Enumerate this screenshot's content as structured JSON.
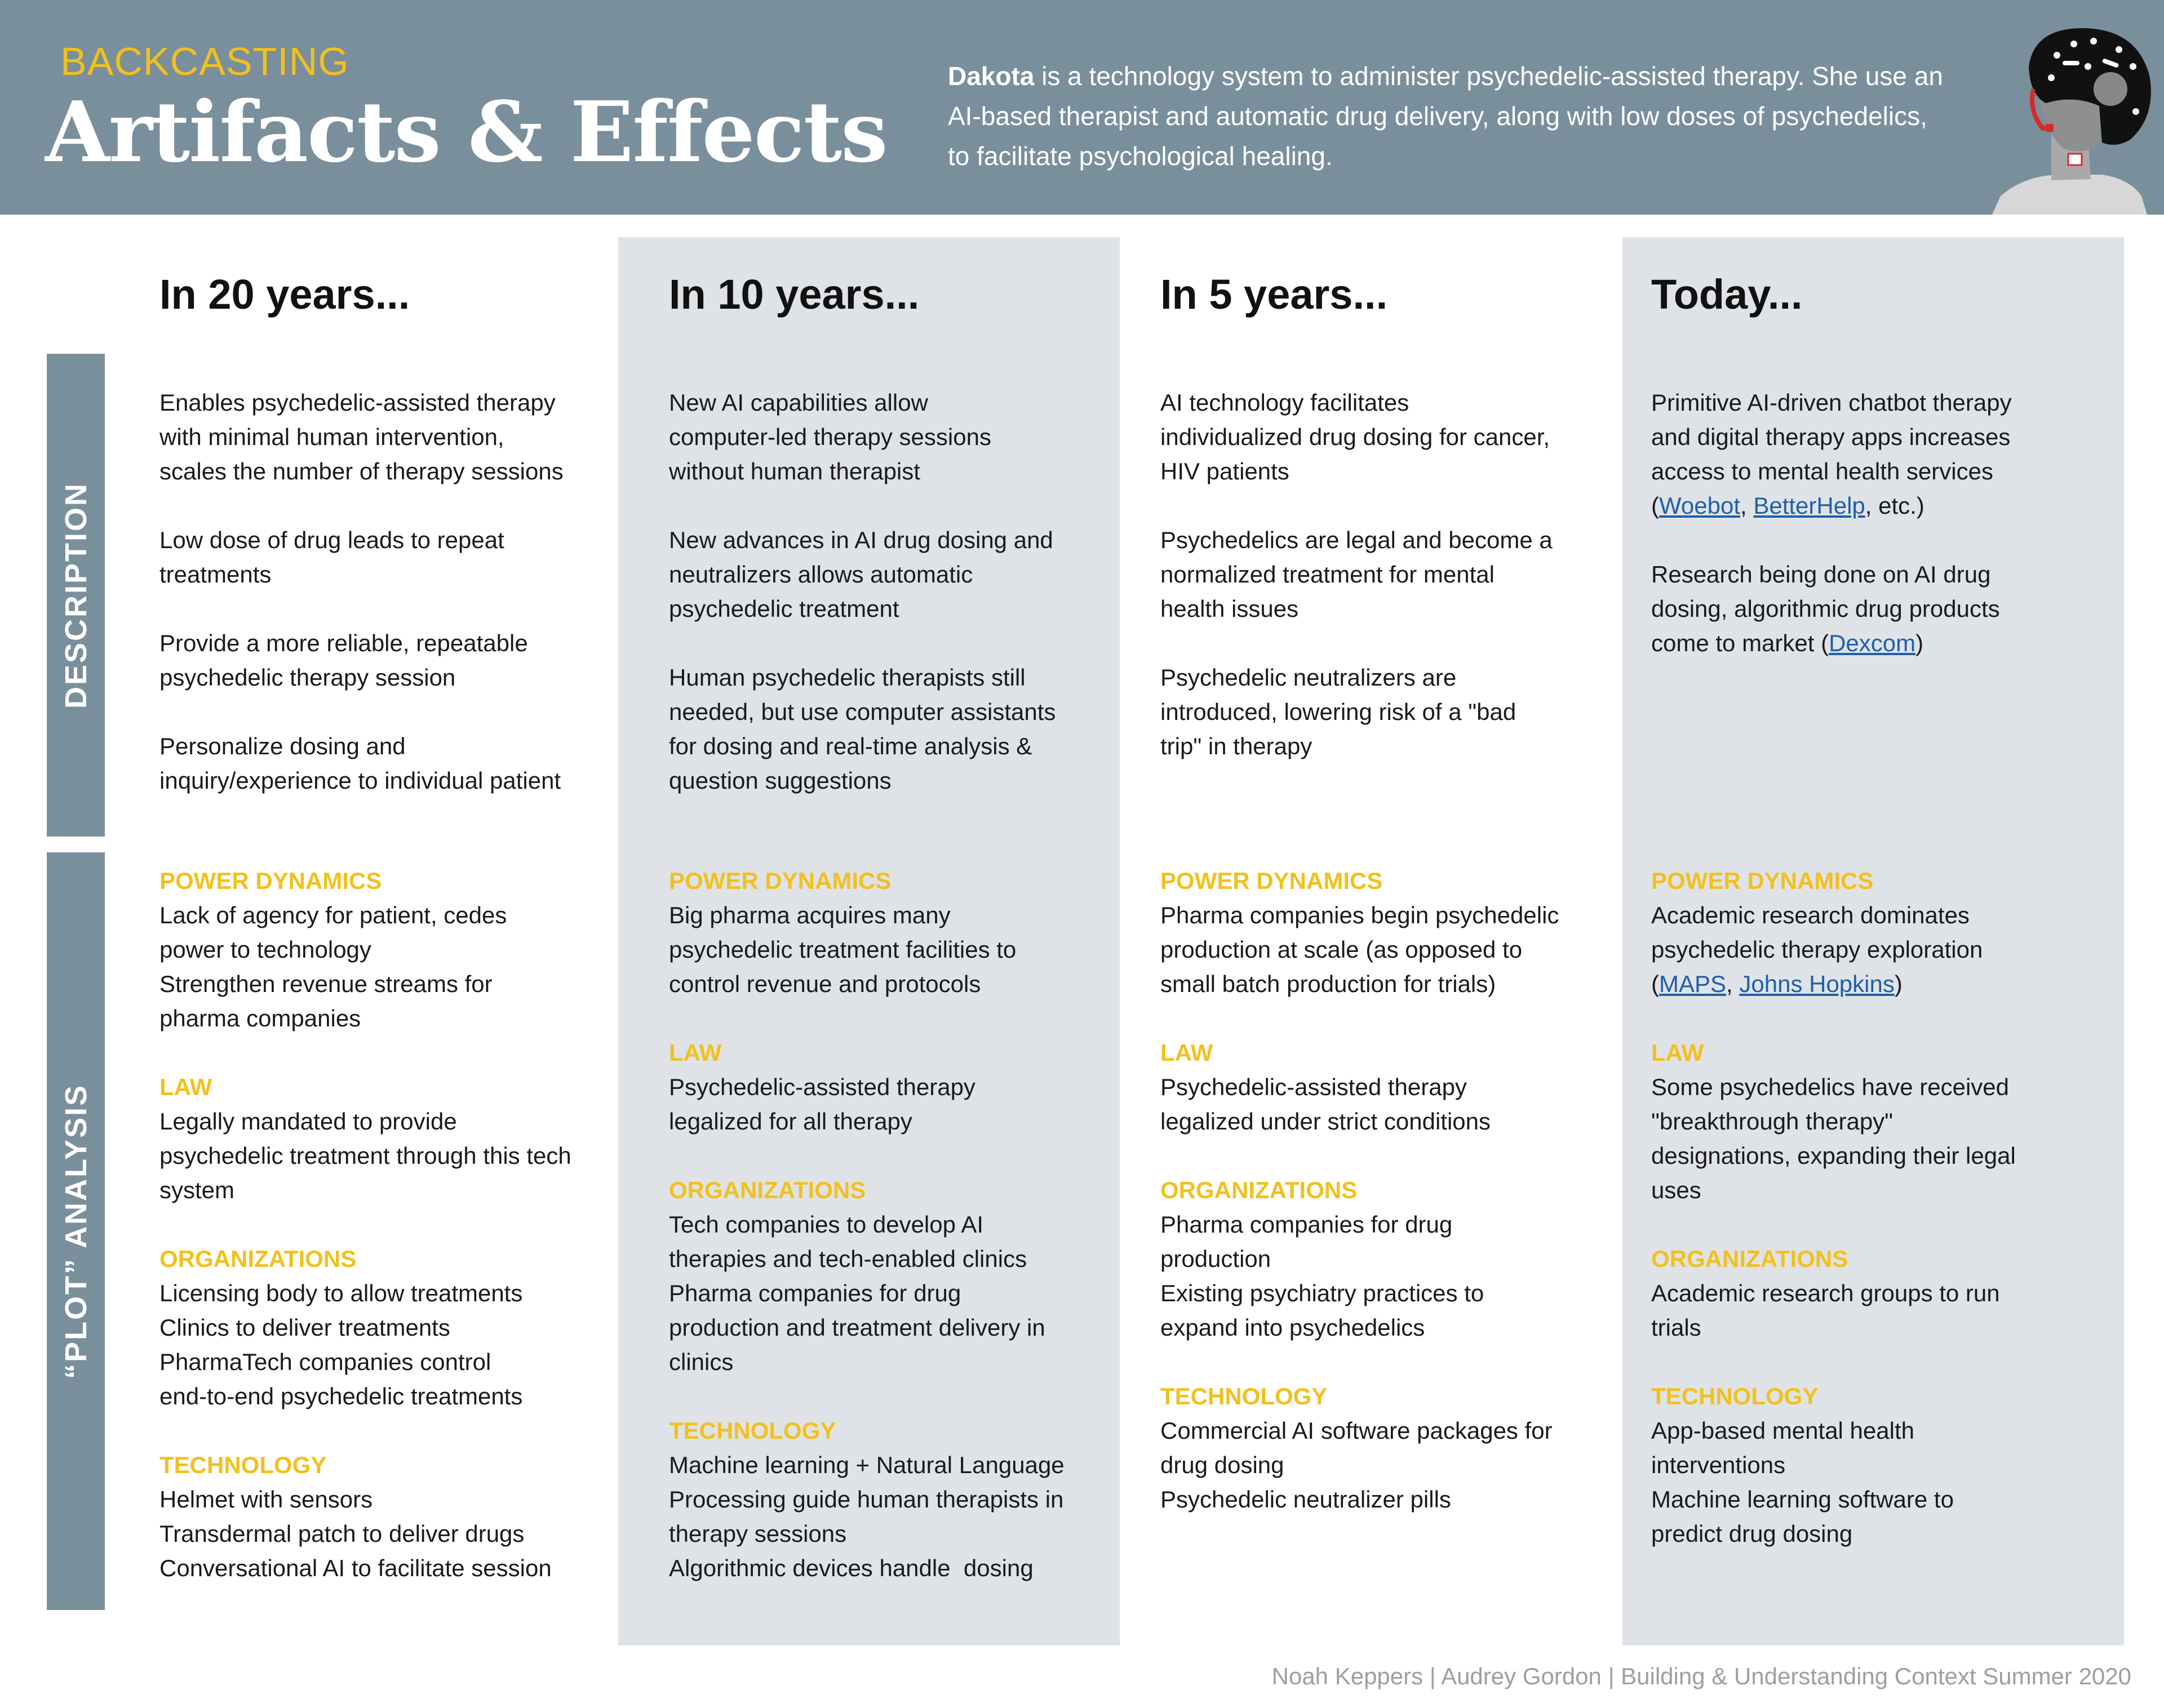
{
  "header": {
    "kicker": "BACKCASTING",
    "title": "Artifacts & Effects",
    "intro_bold": "Dakota",
    "intro_rest": " is a technology system to administer psychedelic-assisted therapy. She use an AI-based therapist and automatic drug delivery, along with low doses of psychedelics, to facilitate psychological healing."
  },
  "side_tabs": {
    "description": "DESCRIPTION",
    "plot": "“PLOT” ANALYSIS"
  },
  "columns": [
    {
      "heading": "In 20 years...",
      "description": [
        [
          "Enables psychedelic-assisted therapy",
          "with minimal human intervention,",
          "scales the number of therapy sessions"
        ],
        [
          "Low dose of drug leads to repeat",
          "treatments"
        ],
        [
          "Provide a more reliable, repeatable",
          "psychedelic therapy session"
        ],
        [
          "Personalize dosing and",
          "inquiry/experience to individual patient"
        ]
      ],
      "plot": [
        {
          "title": "POWER DYNAMICS",
          "lines": [
            "Lack of agency for patient, cedes",
            "power to technology",
            "Strengthen revenue streams for",
            "pharma companies"
          ]
        },
        {
          "title": "LAW",
          "lines": [
            "Legally mandated to provide",
            "psychedelic treatment through this tech",
            "system"
          ]
        },
        {
          "title": "ORGANIZATIONS",
          "lines": [
            "Licensing body to allow treatments",
            "Clinics to deliver treatments",
            "PharmaTech companies control",
            "end-to-end psychedelic treatments"
          ]
        },
        {
          "title": "TECHNOLOGY",
          "lines": [
            "Helmet with sensors",
            "Transdermal patch to deliver drugs",
            "Conversational AI to facilitate session"
          ]
        }
      ]
    },
    {
      "heading": "In 10 years...",
      "description": [
        [
          "New AI capabilities allow",
          "computer-led therapy sessions",
          "without human therapist"
        ],
        [
          "New advances in AI drug dosing and",
          "neutralizers allows automatic",
          "psychedelic treatment"
        ],
        [
          "Human psychedelic therapists still",
          "needed, but use computer assistants",
          "for dosing and real-time analysis &",
          "question suggestions"
        ]
      ],
      "plot": [
        {
          "title": "POWER DYNAMICS",
          "lines": [
            "Big pharma acquires many",
            "psychedelic treatment facilities to",
            "control revenue and protocols"
          ]
        },
        {
          "title": "LAW",
          "lines": [
            "Psychedelic-assisted therapy",
            "legalized for all therapy"
          ]
        },
        {
          "title": "ORGANIZATIONS",
          "lines": [
            "Tech companies to develop AI",
            "therapies and tech-enabled clinics",
            "Pharma companies for drug",
            "production and treatment delivery in",
            "clinics"
          ]
        },
        {
          "title": "TECHNOLOGY",
          "lines": [
            "Machine learning + Natural Language",
            "Processing guide human therapists in",
            "therapy sessions",
            "Algorithmic devices handle  dosing"
          ]
        }
      ]
    },
    {
      "heading": "In 5 years...",
      "description": [
        [
          "AI technology facilitates",
          "individualized drug dosing for cancer,",
          "HIV patients"
        ],
        [
          "Psychedelics are legal and become a",
          "normalized treatment for mental",
          "health issues"
        ],
        [
          "Psychedelic neutralizers are",
          "introduced, lowering risk of a \"bad",
          "trip\" in therapy"
        ]
      ],
      "plot": [
        {
          "title": "POWER DYNAMICS",
          "lines": [
            "Pharma companies begin psychedelic",
            "production at scale (as opposed to",
            "small batch production for trials)"
          ]
        },
        {
          "title": "LAW",
          "lines": [
            "Psychedelic-assisted therapy",
            "legalized under strict conditions"
          ]
        },
        {
          "title": "ORGANIZATIONS",
          "lines": [
            "Pharma companies for drug",
            "production",
            "Existing psychiatry practices to",
            "expand into psychedelics"
          ]
        },
        {
          "title": "TECHNOLOGY",
          "lines": [
            "Commercial AI software packages for",
            "drug dosing",
            "Psychedelic neutralizer pills"
          ]
        }
      ]
    },
    {
      "heading": "Today...",
      "description_today": {
        "p1_lines": [
          "Primitive AI-driven chatbot therapy",
          "and digital therapy apps increases",
          "access to mental health services"
        ],
        "p1_open": "(",
        "p1_link1": "Woebot",
        "p1_sep": ", ",
        "p1_link2": "BetterHelp",
        "p1_close": ", etc.)",
        "p2_lines": [
          "Research being done on AI drug",
          "dosing, algorithmic drug products"
        ],
        "p2_last": "come to market (",
        "p2_link": "Dexcom",
        "p2_close": ")"
      },
      "plot_today": {
        "power_title": "POWER DYNAMICS",
        "power_lines": [
          "Academic research dominates",
          "psychedelic therapy exploration"
        ],
        "power_open": "(",
        "power_link1": "MAPS",
        "power_sep": ", ",
        "power_link2": "Johns Hopkins",
        "power_close": ")",
        "rest": [
          {
            "title": "LAW",
            "lines": [
              "Some psychedelics have received",
              "\"breakthrough therapy\"",
              "designations, expanding their legal",
              "uses"
            ]
          },
          {
            "title": "ORGANIZATIONS",
            "lines": [
              "Academic research groups to run",
              "trials"
            ]
          },
          {
            "title": "TECHNOLOGY",
            "lines": [
              "App-based mental health",
              "interventions",
              "Machine learning software to",
              "predict drug dosing"
            ]
          }
        ]
      }
    }
  ],
  "footer": "Noah Keppers | Audrey Gordon | Building & Understanding Context Summer 2020",
  "colors": {
    "header": "#7a8f9c",
    "accent": "#f2c01e",
    "column_shade": "#dfe3e7",
    "link": "#1f5fa8"
  },
  "icons": {
    "avatar": "helmet-person-illustration"
  }
}
